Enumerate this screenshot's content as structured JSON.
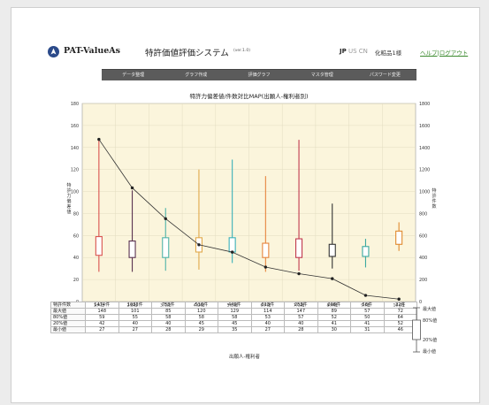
{
  "header": {
    "app_name": "PAT-ValueAs",
    "system_title": "特許価値評価システム",
    "version": "(ver.1.0)",
    "lang_jp": "JP",
    "lang_us": "US",
    "lang_cn": "CN",
    "user_label": "化粧品1様",
    "links": "ヘルプ|ログアウト"
  },
  "menu": [
    {
      "label": "データ整理"
    },
    {
      "label": "グラフ作成"
    },
    {
      "label": "評価グラフ"
    },
    {
      "label": "マスタ管理"
    },
    {
      "label": "パスワード変更"
    }
  ],
  "colors": {
    "menubar": "#5b5b5b",
    "plot_bg": "#fbf5dc",
    "link": "#3b8a2e",
    "curve": "#333333"
  },
  "chart_data": {
    "type": "boxplot",
    "title": "特許力偏差値/件数対比MAP(出願人-権利者別)",
    "xlabel": "出願人-権利者",
    "ylabel_left": "特許力偏差値",
    "ylabel_right": "特許件数",
    "ylim_left": [
      0,
      180
    ],
    "ylim_right": [
      0,
      1800
    ],
    "yticks_left": [
      "0",
      "20",
      "40",
      "60",
      "80",
      "100",
      "120",
      "140",
      "160",
      "180"
    ],
    "yticks_right": [
      "0",
      "200",
      "400",
      "600",
      "800",
      "1000",
      "1200",
      "1400",
      "1600",
      "1800"
    ],
    "categories": [
      "1:A社",
      "2:B社",
      "3:C社",
      "4:D社",
      "5:E社",
      "6:F社",
      "7:G社",
      "8:H社",
      "9:I社",
      "10:J社"
    ],
    "box_colors": [
      "#d9534f",
      "#5a3350",
      "#4fb3a9",
      "#e0a84a",
      "#3ab0b8",
      "#e6853e",
      "#c0394e",
      "#333333",
      "#3aa8a0",
      "#e08a2e"
    ],
    "max": [
      148,
      101,
      85,
      120,
      129,
      114,
      147,
      89,
      57,
      72
    ],
    "p80": [
      59,
      55,
      58,
      58,
      58,
      53,
      57,
      52,
      50,
      64
    ],
    "p20": [
      42,
      40,
      40,
      45,
      45,
      40,
      40,
      41,
      41,
      52
    ],
    "min": [
      27,
      27,
      28,
      29,
      35,
      27,
      28,
      30,
      31,
      46
    ],
    "counts": [
      1474,
      1033,
      753,
      516,
      449,
      313,
      253,
      208,
      56,
      22
    ],
    "count_labels": [
      "1474件",
      "1033件",
      "753件",
      "516件",
      "449件",
      "313件",
      "253件",
      "208件",
      "56件",
      "22件"
    ],
    "table_rows": [
      {
        "label": "特許件数",
        "cells": [
          "1474件",
          "1033件",
          "753件",
          "516件",
          "449件",
          "313件",
          "253件",
          "208件",
          "56件",
          "22件"
        ]
      },
      {
        "label": "最大値",
        "cells": [
          "148",
          "101",
          "85",
          "120",
          "129",
          "114",
          "147",
          "89",
          "57",
          "72"
        ]
      },
      {
        "label": "80%値",
        "cells": [
          "59",
          "55",
          "58",
          "58",
          "58",
          "53",
          "57",
          "52",
          "50",
          "64"
        ]
      },
      {
        "label": "20%値",
        "cells": [
          "42",
          "40",
          "40",
          "45",
          "45",
          "40",
          "40",
          "41",
          "41",
          "52"
        ]
      },
      {
        "label": "最小値",
        "cells": [
          "27",
          "27",
          "28",
          "29",
          "35",
          "27",
          "28",
          "30",
          "31",
          "46"
        ]
      }
    ],
    "legend": {
      "max": "最大値",
      "p80": "80%値",
      "p20": "20%値",
      "min": "最小値"
    }
  }
}
